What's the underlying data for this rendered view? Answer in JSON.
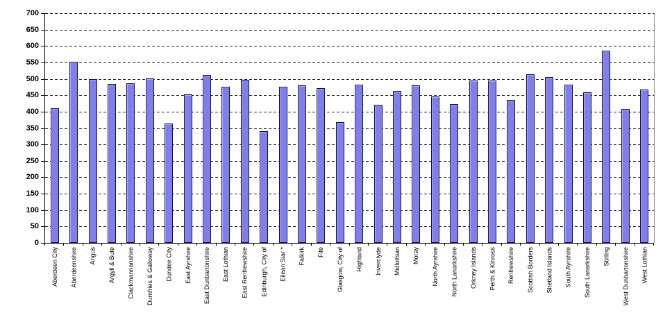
{
  "chart_data": {
    "type": "bar",
    "title": "",
    "xlabel": "",
    "ylabel": "",
    "categories": [
      "Aberdeen City",
      "Aberdeenshire",
      "Angus",
      "Argyll & Bute",
      "Clackmannanshire",
      "Dumfries & Galloway",
      "Dundee City",
      "East Ayrshire",
      "East Dunbartonshire",
      "East Lothian",
      "East Renfrewshire",
      "Edinburgh, City of",
      "Eilean Siar *",
      "Falkirk",
      "Fife",
      "Glasgow, City of",
      "Highland",
      "Inverclyde",
      "Midlothian",
      "Moray",
      "North Ayrshire",
      "North Lanarkshire",
      "Orkney Islands",
      "Perth & Kinross",
      "Renfrewshire",
      "Scottish Borders",
      "Shetland Islands",
      "South Ayrshire",
      "South Lanarkshire",
      "Stirling",
      "West Dunbartonshire",
      "West Lothian"
    ],
    "values": [
      411,
      553,
      499,
      484,
      487,
      501,
      363,
      452,
      512,
      475,
      498,
      341,
      476,
      480,
      471,
      368,
      483,
      420,
      464,
      481,
      447,
      422,
      495,
      495,
      436,
      514,
      505,
      482,
      458,
      585,
      409,
      467
    ],
    "ylim": [
      0,
      700
    ],
    "yticks": [
      0,
      50,
      100,
      150,
      200,
      250,
      300,
      350,
      400,
      450,
      500,
      550,
      600,
      650,
      700
    ],
    "grid": "horizontal-dashed",
    "legend": "none",
    "colors": {
      "bar_fill": "#7F7FEC",
      "bar_border": "#0F0F46",
      "gridline": "#1A1A1A",
      "axis": "#000000",
      "plot_right_border": "#909090",
      "background": "#FFFFFF"
    }
  }
}
